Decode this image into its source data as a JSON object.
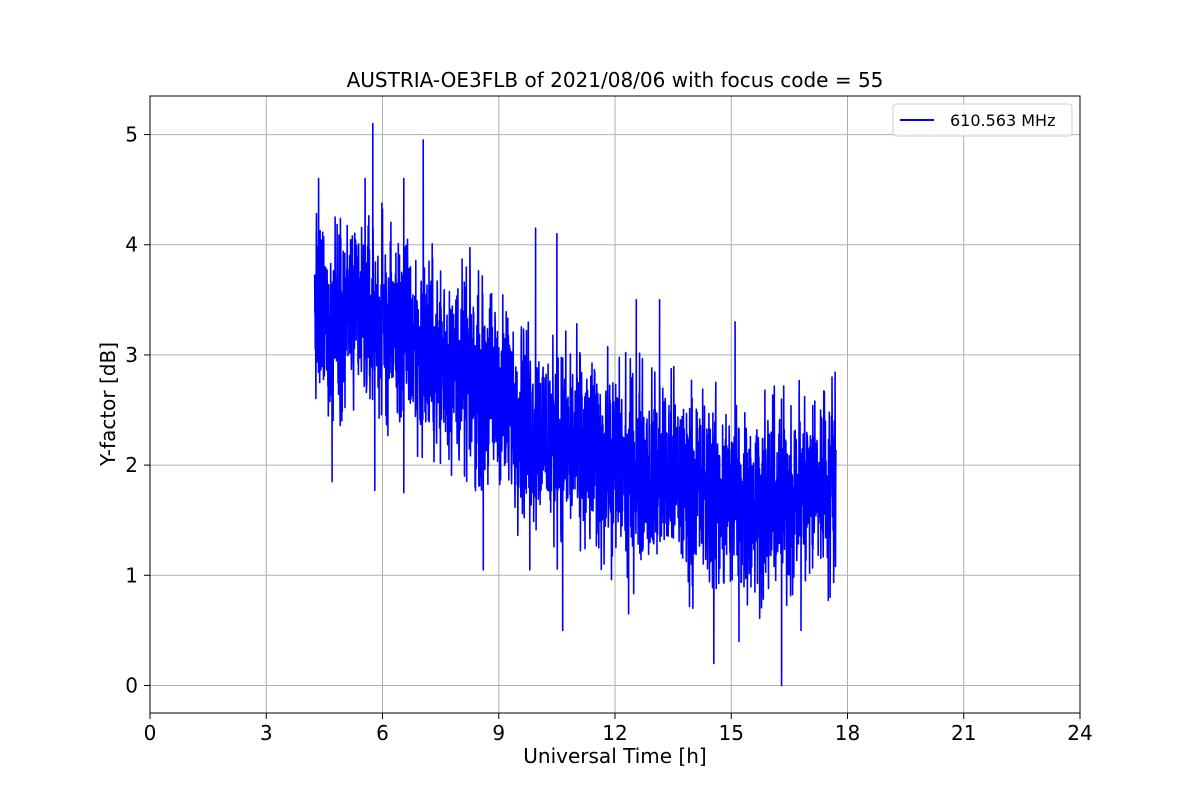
{
  "chart_data": {
    "type": "line",
    "title": "AUSTRIA-OE3FLB of 2021/08/06 with focus code = 55",
    "xlabel": "Universal Time [h]",
    "ylabel": "Y-factor [dB]",
    "xlim": [
      0,
      24
    ],
    "ylim": [
      -0.25,
      5.35
    ],
    "xticks": [
      0,
      3,
      6,
      9,
      12,
      15,
      18,
      21,
      24
    ],
    "xtick_labels": [
      "0",
      "3",
      "6",
      "9",
      "12",
      "15",
      "18",
      "21",
      "24"
    ],
    "yticks": [
      0,
      1,
      2,
      3,
      4,
      5
    ],
    "ytick_labels": [
      "0",
      "1",
      "2",
      "3",
      "4",
      "5"
    ],
    "grid": true,
    "legend_position": "top-right",
    "series": [
      {
        "name": "610.563 MHz",
        "color": "#0000ff",
        "t_start": 4.25,
        "t_end": 17.7,
        "trend": [
          {
            "x": 4.25,
            "y": 3.3
          },
          {
            "x": 5.0,
            "y": 3.4
          },
          {
            "x": 6.0,
            "y": 3.3
          },
          {
            "x": 7.0,
            "y": 3.05
          },
          {
            "x": 8.0,
            "y": 2.85
          },
          {
            "x": 9.0,
            "y": 2.65
          },
          {
            "x": 10.0,
            "y": 2.3
          },
          {
            "x": 11.0,
            "y": 2.15
          },
          {
            "x": 12.0,
            "y": 2.0
          },
          {
            "x": 13.0,
            "y": 1.95
          },
          {
            "x": 14.0,
            "y": 1.8
          },
          {
            "x": 15.0,
            "y": 1.7
          },
          {
            "x": 16.0,
            "y": 1.65
          },
          {
            "x": 17.0,
            "y": 1.8
          },
          {
            "x": 17.7,
            "y": 1.9
          }
        ],
        "noise_amplitude": 0.85,
        "peaks": [
          {
            "x": 4.35,
            "y": 4.6
          },
          {
            "x": 5.55,
            "y": 4.6
          },
          {
            "x": 5.75,
            "y": 5.1
          },
          {
            "x": 6.55,
            "y": 4.6
          },
          {
            "x": 7.05,
            "y": 4.95
          },
          {
            "x": 9.95,
            "y": 4.15
          },
          {
            "x": 10.5,
            "y": 4.1
          },
          {
            "x": 12.55,
            "y": 3.5
          },
          {
            "x": 13.15,
            "y": 3.5
          },
          {
            "x": 15.1,
            "y": 3.3
          },
          {
            "x": 17.6,
            "y": 2.8
          }
        ],
        "dips": [
          {
            "x": 4.7,
            "y": 1.85
          },
          {
            "x": 5.8,
            "y": 1.77
          },
          {
            "x": 6.55,
            "y": 1.75
          },
          {
            "x": 8.6,
            "y": 1.05
          },
          {
            "x": 9.8,
            "y": 1.05
          },
          {
            "x": 10.65,
            "y": 0.5
          },
          {
            "x": 12.35,
            "y": 0.65
          },
          {
            "x": 14.55,
            "y": 0.2
          },
          {
            "x": 15.2,
            "y": 0.4
          },
          {
            "x": 16.3,
            "y": 0.0
          },
          {
            "x": 16.8,
            "y": 0.5
          },
          {
            "x": 17.55,
            "y": 0.8
          }
        ]
      }
    ]
  }
}
